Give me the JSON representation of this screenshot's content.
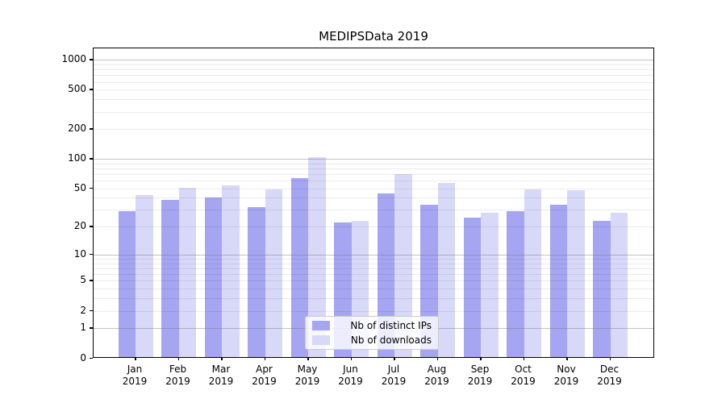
{
  "chart_data": {
    "type": "bar",
    "title": "MEDIPSData 2019",
    "categories": [
      "Jan",
      "Feb",
      "Mar",
      "Apr",
      "May",
      "Jun",
      "Jul",
      "Aug",
      "Sep",
      "Oct",
      "Nov",
      "Dec"
    ],
    "year_label": "2019",
    "series": [
      {
        "name": "Nb of distinct IPs",
        "color": "#a5a5f2",
        "values": [
          29,
          38,
          40,
          32,
          64,
          22,
          44,
          34,
          25,
          29,
          34,
          23
        ]
      },
      {
        "name": "Nb of downloads",
        "color": "#d8d8f8",
        "values": [
          43,
          51,
          54,
          49,
          105,
          23,
          70,
          57,
          28,
          49,
          48,
          28
        ]
      }
    ],
    "xlabel": "",
    "ylabel": "",
    "y_scale": "log1p",
    "y_ticks": [
      0,
      1,
      2,
      5,
      10,
      20,
      50,
      100,
      200,
      500,
      1000
    ],
    "ylim": [
      0,
      1300
    ],
    "grid": "major-and-minor-horizontal",
    "legend_position": "lower center inside plot",
    "colors": {
      "major_grid": "#787878",
      "minor_grid": "#e8e8e8",
      "frame": "#000000",
      "background": "#ffffff"
    }
  }
}
